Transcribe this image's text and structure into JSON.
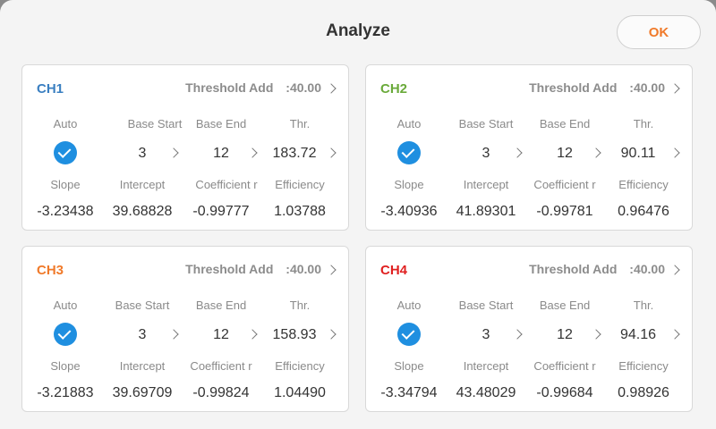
{
  "dialog": {
    "title": "Analyze",
    "ok_label": "OK"
  },
  "labels": {
    "auto": "Auto",
    "base_start": "Base Start",
    "base_end": "Base End",
    "thr": "Thr.",
    "slope": "Slope",
    "intercept": "Intercept",
    "coefficient": "Coefficient r",
    "efficiency": "Efficiency",
    "threshold_add": "Threshold Add",
    "threshold_sep": ":"
  },
  "colors": {
    "ch1": "#3a7fc1",
    "ch2": "#6aaa3a",
    "ch3": "#f07a2a",
    "ch4": "#e02020",
    "accent": "#1f8fe0"
  },
  "channels": [
    {
      "name": "CH1",
      "threshold_add": "40.00",
      "auto": true,
      "base_start": "3",
      "base_end": "12",
      "thr": "183.72",
      "slope": "-3.23438",
      "intercept": "39.68828",
      "coefficient": "-0.99777",
      "efficiency": "1.03788"
    },
    {
      "name": "CH2",
      "threshold_add": "40.00",
      "auto": true,
      "base_start": "3",
      "base_end": "12",
      "thr": "90.11",
      "slope": "-3.40936",
      "intercept": "41.89301",
      "coefficient": "-0.99781",
      "efficiency": "0.96476"
    },
    {
      "name": "CH3",
      "threshold_add": "40.00",
      "auto": true,
      "base_start": "3",
      "base_end": "12",
      "thr": "158.93",
      "slope": "-3.21883",
      "intercept": "39.69709",
      "coefficient": "-0.99824",
      "efficiency": "1.04490"
    },
    {
      "name": "CH4",
      "threshold_add": "40.00",
      "auto": true,
      "base_start": "3",
      "base_end": "12",
      "thr": "94.16",
      "slope": "-3.34794",
      "intercept": "43.48029",
      "coefficient": "-0.99684",
      "efficiency": "0.98926"
    }
  ]
}
